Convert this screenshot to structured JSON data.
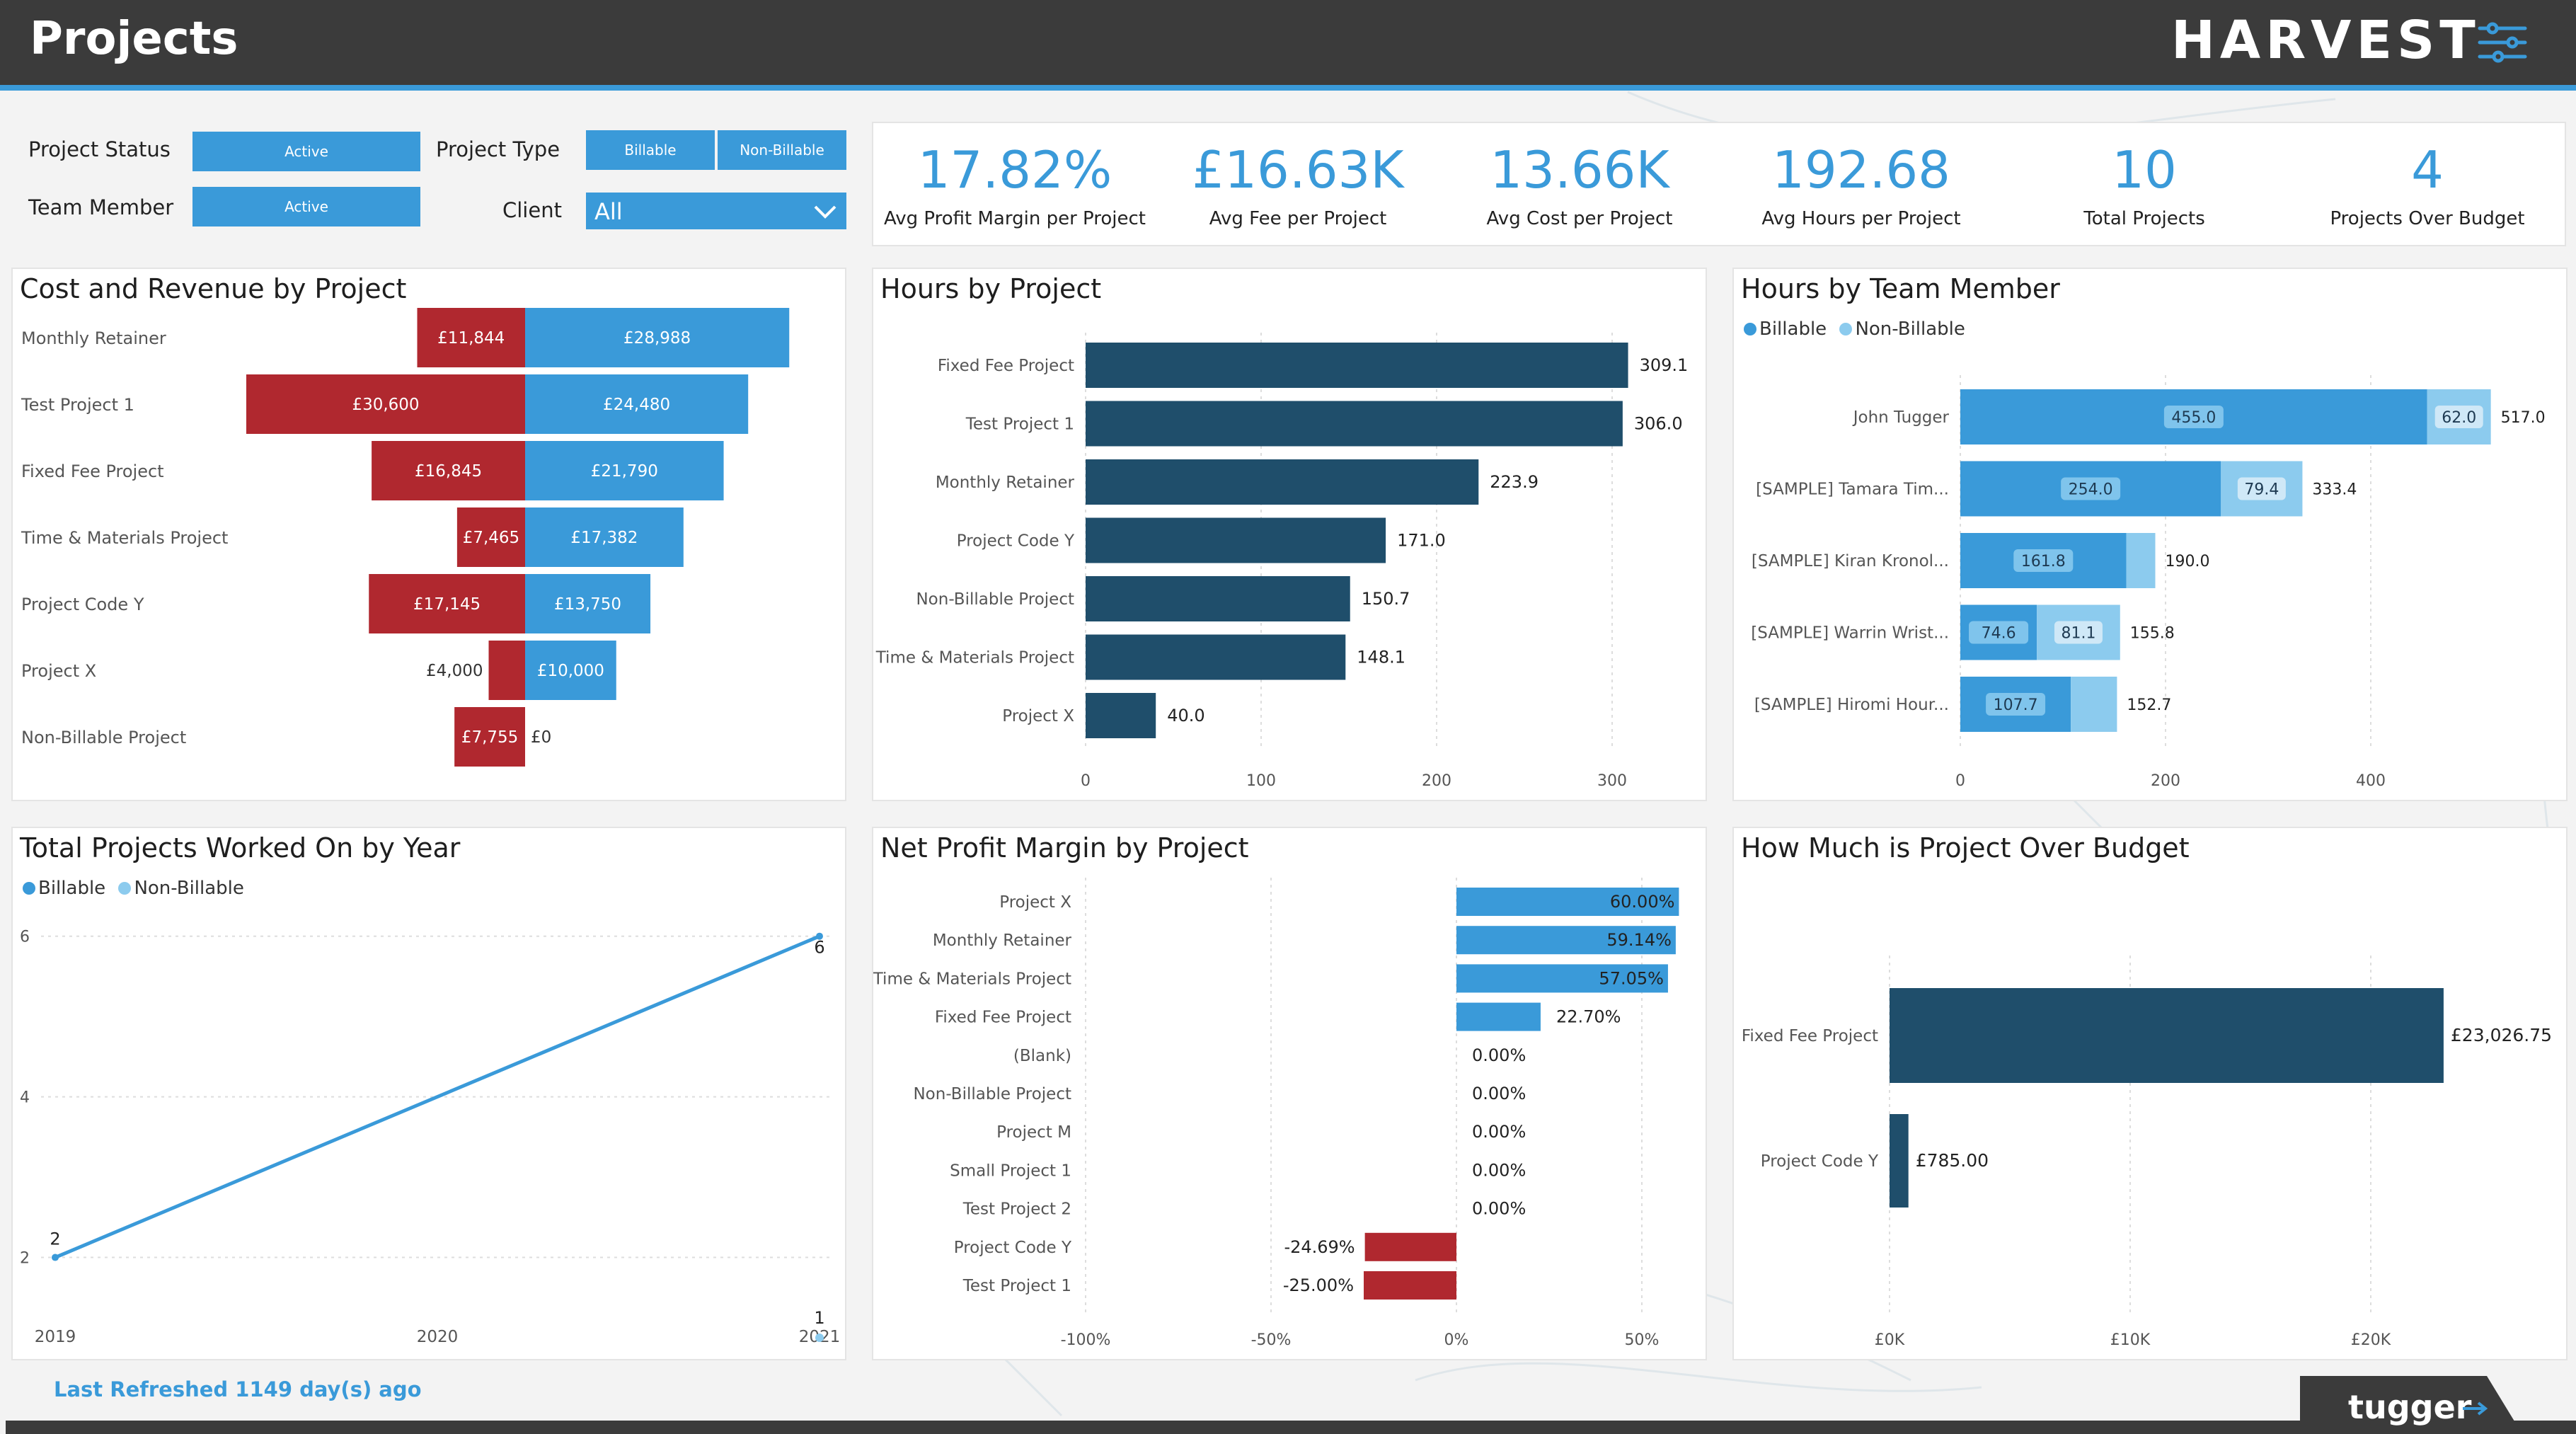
{
  "header": {
    "title": "Projects",
    "brand": "HARVEST",
    "menu_icon": "sliders-icon"
  },
  "filters": {
    "project_status": {
      "label": "Project Status",
      "value": "Active"
    },
    "team_member": {
      "label": "Team Member",
      "value": "Active"
    },
    "project_type": {
      "label": "Project Type",
      "options": [
        "Billable",
        "Non-Billable"
      ]
    },
    "client": {
      "label": "Client",
      "value": "All"
    }
  },
  "kpis": [
    {
      "value": "17.82%",
      "label": "Avg Profit Margin per Project"
    },
    {
      "value": "£16.63K",
      "label": "Avg Fee per Project"
    },
    {
      "value": "13.66K",
      "label": "Avg Cost per Project"
    },
    {
      "value": "192.68",
      "label": "Avg Hours per Project"
    },
    {
      "value": "10",
      "label": "Total Projects"
    },
    {
      "value": "4",
      "label": "Projects Over Budget"
    }
  ],
  "colors": {
    "accent": "#3a9ad9",
    "cost": "#b0282f",
    "navy": "#1f4e6b",
    "light_blue": "#8ccbee",
    "topbar": "#3b3b3b"
  },
  "chart_data": [
    {
      "type": "bar",
      "title": "Cost and Revenue by Project",
      "categories": [
        "Monthly Retainer",
        "Test Project 1",
        "Fixed Fee Project",
        "Time & Materials Project",
        "Project Code Y",
        "Project X",
        "Non-Billable Project"
      ],
      "series": [
        {
          "values": [
            11844,
            30600,
            16845,
            7465,
            17145,
            4000,
            7755
          ],
          "labels": [
            "£11,844",
            "£30,600",
            "£16,845",
            "£7,465",
            "£17,145",
            "£4,000",
            "£7,755"
          ]
        },
        {
          "values": [
            28988,
            24480,
            21790,
            17382,
            13750,
            10000,
            0
          ],
          "labels": [
            "£28,988",
            "£24,480",
            "£21,790",
            "£17,382",
            "£13,750",
            "£10,000",
            "£0"
          ]
        }
      ]
    },
    {
      "type": "bar",
      "title": "Hours by Project",
      "categories": [
        "Fixed Fee Project",
        "Test Project 1",
        "Monthly Retainer",
        "Project Code Y",
        "Non-Billable Project",
        "Time & Materials Project",
        "Project X"
      ],
      "values": [
        309.1,
        306.0,
        223.9,
        171.0,
        150.7,
        148.1,
        40.0
      ],
      "labels": [
        "309.1",
        "306.0",
        "223.9",
        "171.0",
        "150.7",
        "148.1",
        "40.0"
      ],
      "xlim": [
        0,
        350
      ],
      "xticks": [
        "0",
        "100",
        "200",
        "300"
      ]
    },
    {
      "type": "bar",
      "title": "Hours by Team Member",
      "categories": [
        "John Tugger",
        "[SAMPLE] Tamara Tim...",
        "[SAMPLE] Kiran Kronol...",
        "[SAMPLE] Warrin Wrist...",
        "[SAMPLE] Hiromi Hour..."
      ],
      "series": [
        {
          "name": "Billable",
          "values": [
            455.0,
            254.0,
            161.8,
            74.6,
            107.7
          ],
          "labels": [
            "455.0",
            "254.0",
            "161.8",
            "74.6",
            "107.7"
          ]
        },
        {
          "name": "Non-Billable",
          "values": [
            62.0,
            79.4,
            28.2,
            81.1,
            45.0
          ],
          "labels": [
            "62.0",
            "79.4",
            "",
            "81.1",
            ""
          ]
        }
      ],
      "totals": [
        "517.0",
        "333.4",
        "190.0",
        "155.8",
        "152.7"
      ],
      "xlim": [
        0,
        580
      ],
      "xticks": [
        "0",
        "200",
        "400"
      ]
    },
    {
      "type": "line",
      "title": "Total Projects Worked On by Year",
      "x": [
        "2019",
        "2020",
        "2021"
      ],
      "series": [
        {
          "name": "Billable",
          "values": [
            2,
            null,
            6
          ],
          "labels": [
            "2",
            "",
            "6"
          ]
        },
        {
          "name": "Non-Billable",
          "values": [
            null,
            null,
            1
          ],
          "labels": [
            "",
            "",
            "1"
          ]
        }
      ],
      "ylim": [
        1,
        6.2
      ],
      "yticks": [
        "2",
        "4",
        "6"
      ]
    },
    {
      "type": "bar",
      "title": "Net Profit Margin by Project",
      "categories": [
        "Project X",
        "Monthly Retainer",
        "Time & Materials Project",
        "Fixed Fee Project",
        "(Blank)",
        "Non-Billable Project",
        "Project M",
        "Small Project 1",
        "Test Project 2",
        "Project Code Y",
        "Test Project 1"
      ],
      "values": [
        60.0,
        59.14,
        57.05,
        22.7,
        0,
        0,
        0,
        0,
        0,
        -24.69,
        -25.0
      ],
      "labels": [
        "60.00%",
        "59.14%",
        "57.05%",
        "22.70%",
        "0.00%",
        "0.00%",
        "0.00%",
        "0.00%",
        "0.00%",
        "-24.69%",
        "-25.00%"
      ],
      "xlim": [
        -100,
        60
      ],
      "xticks": [
        "-100%",
        "-50%",
        "0%",
        "50%"
      ]
    },
    {
      "type": "bar",
      "title": "How Much is Project Over Budget",
      "categories": [
        "Fixed Fee Project",
        "Project Code Y"
      ],
      "values": [
        23026.75,
        785.0
      ],
      "labels": [
        "£23,026.75",
        "£785.00"
      ],
      "xlim": [
        0,
        26000
      ],
      "xticks": [
        "£0K",
        "£10K",
        "£20K"
      ]
    }
  ],
  "footer": {
    "refresh": "Last Refreshed 1149 day(s) ago",
    "logo": "tugger"
  }
}
